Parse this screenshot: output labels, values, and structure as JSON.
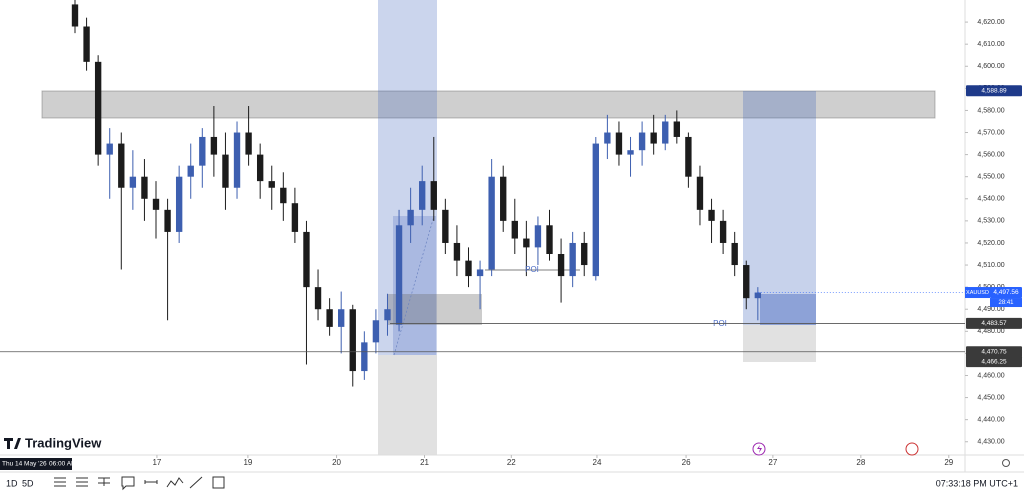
{
  "chart_data": {
    "type": "candlestick",
    "symbol": "XAUUSD",
    "countdown": "28:41",
    "crosshair_date": "Thu 14 May '26",
    "crosshair_time": "06:00 AM",
    "annotations": [
      "POI",
      "POI"
    ],
    "up_color": "#3d5fb0",
    "down_color": "#1c1c1c",
    "x": [
      0,
      1,
      2,
      3,
      4,
      5,
      6,
      7,
      8,
      9,
      10,
      11,
      12,
      13,
      14,
      15,
      16,
      17,
      18,
      19,
      20,
      21,
      22,
      23,
      24,
      25,
      26,
      27,
      28,
      29,
      30,
      31,
      32,
      33,
      34,
      35,
      36,
      37,
      38,
      39,
      40,
      41,
      42,
      43,
      44,
      45,
      46,
      47,
      48,
      49,
      50,
      51,
      52,
      53,
      54,
      55,
      56,
      57,
      58,
      59
    ],
    "open": [
      4628,
      4618,
      4602,
      4560,
      4565,
      4545,
      4550,
      4540,
      4535,
      4525,
      4550,
      4555,
      4568,
      4560,
      4545,
      4570,
      4560,
      4548,
      4545,
      4538,
      4525,
      4500,
      4490,
      4482,
      4490,
      4462,
      4475,
      4485,
      4483,
      4528,
      4535,
      4548,
      4535,
      4520,
      4512,
      4505,
      4508,
      4550,
      4530,
      4522,
      4518,
      4528,
      4515,
      4505,
      4520,
      4505,
      4565,
      4570,
      4560,
      4562,
      4570,
      4565,
      4575,
      4568,
      4550,
      4535,
      4530,
      4520,
      4510,
      4495
    ],
    "high": [
      4630,
      4622,
      4605,
      4572,
      4570,
      4562,
      4558,
      4548,
      4540,
      4555,
      4565,
      4572,
      4582,
      4570,
      4575,
      4582,
      4565,
      4555,
      4552,
      4545,
      4530,
      4508,
      4495,
      4498,
      4492,
      4480,
      4490,
      4497,
      4535,
      4545,
      4555,
      4568,
      4540,
      4528,
      4518,
      4512,
      4558,
      4555,
      4540,
      4530,
      4532,
      4535,
      4522,
      4525,
      4525,
      4568,
      4578,
      4575,
      4568,
      4575,
      4578,
      4578,
      4580,
      4570,
      4555,
      4540,
      4535,
      4525,
      4512,
      4500
    ],
    "low": [
      4615,
      4598,
      4555,
      4540,
      4508,
      4535,
      4530,
      4522,
      4485,
      4520,
      4540,
      4545,
      4550,
      4535,
      4540,
      4555,
      4540,
      4535,
      4530,
      4520,
      4465,
      4485,
      4478,
      4470,
      4455,
      4458,
      4470,
      4478,
      4480,
      4520,
      4528,
      4530,
      4515,
      4505,
      4500,
      4490,
      4505,
      4525,
      4515,
      4505,
      4510,
      4512,
      4493,
      4500,
      4505,
      4503,
      4558,
      4555,
      4550,
      4555,
      4560,
      4562,
      4565,
      4545,
      4528,
      4520,
      4515,
      4505,
      4490,
      4485
    ],
    "close": [
      4618,
      4602,
      4560,
      4565,
      4545,
      4550,
      4540,
      4535,
      4525,
      4550,
      4555,
      4568,
      4560,
      4545,
      4570,
      4560,
      4548,
      4545,
      4538,
      4525,
      4500,
      4490,
      4482,
      4490,
      4462,
      4475,
      4485,
      4490,
      4528,
      4535,
      4548,
      4535,
      4520,
      4512,
      4505,
      4508,
      4550,
      4530,
      4522,
      4518,
      4528,
      4515,
      4505,
      4520,
      4510,
      4565,
      4570,
      4560,
      4562,
      4570,
      4565,
      4575,
      4568,
      4550,
      4535,
      4530,
      4520,
      4510,
      4495,
      4497.56
    ],
    "xlim": [
      -6.48,
      76.9
    ],
    "ylim": [
      4424,
      4630
    ],
    "xticks": [
      {
        "value": 7.08,
        "label": "17"
      },
      {
        "value": 14.94,
        "label": "19"
      },
      {
        "value": 22.6,
        "label": "20"
      },
      {
        "value": 30.2,
        "label": "21"
      },
      {
        "value": 37.7,
        "label": "22"
      },
      {
        "value": 45.1,
        "label": "24"
      },
      {
        "value": 52.8,
        "label": "26"
      },
      {
        "value": 60.3,
        "label": "27"
      },
      {
        "value": 67.9,
        "label": "28"
      },
      {
        "value": 75.5,
        "label": "29"
      }
    ],
    "yticks": [
      {
        "value": 4430,
        "label": "4,430.00"
      },
      {
        "value": 4440,
        "label": "4,440.00"
      },
      {
        "value": 4450,
        "label": "4,450.00"
      },
      {
        "value": 4460,
        "label": "4,460.00"
      },
      {
        "value": 4470,
        "label": "4,470.00"
      },
      {
        "value": 4480,
        "label": "4,480.00"
      },
      {
        "value": 4490,
        "label": "4,490.00"
      },
      {
        "value": 4500,
        "label": "4,500.00"
      },
      {
        "value": 4510,
        "label": "4,510.00"
      },
      {
        "value": 4520,
        "label": "4,520.00"
      },
      {
        "value": 4530,
        "label": "4,530.00"
      },
      {
        "value": 4540,
        "label": "4,540.00"
      },
      {
        "value": 4550,
        "label": "4,550.00"
      },
      {
        "value": 4560,
        "label": "4,560.00"
      },
      {
        "value": 4570,
        "label": "4,570.00"
      },
      {
        "value": 4580,
        "label": "4,580.00"
      },
      {
        "value": 4590,
        "label": "4,590.00"
      },
      {
        "value": 4600,
        "label": "4,600.00"
      },
      {
        "value": 4610,
        "label": "4,610.00"
      },
      {
        "value": 4620,
        "label": "4,620.00"
      }
    ],
    "price_labels": [
      {
        "value": 4588.89,
        "label": "4,588.89",
        "color": "#1e3a8a"
      },
      {
        "value": 4497.56,
        "label": "4,497.56",
        "color": "#2962ff"
      },
      {
        "value": 4483.57,
        "label": "4,483.57",
        "color": "#3a3a3a"
      },
      {
        "value": 4470.75,
        "label": "4,470.75",
        "color": "#3a3a3a"
      },
      {
        "value": 4466.25,
        "label": "4,466.25",
        "color": "#3a3a3a"
      }
    ]
  },
  "brand": "TradingView",
  "toolbar": {
    "ranges": [
      "1D",
      "5D"
    ],
    "clock": "07:33:18 PM UTC+1"
  }
}
